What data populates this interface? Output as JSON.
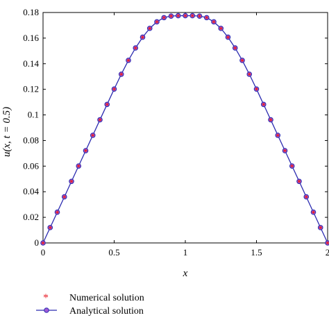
{
  "chart_data": {
    "type": "line",
    "title": "",
    "xlabel": "x",
    "ylabel": "u(x, t = 0.5)",
    "xlim": [
      0,
      2
    ],
    "ylim": [
      0,
      0.18
    ],
    "xticks": [
      0,
      0.5,
      1,
      1.5,
      2
    ],
    "xtick_labels": [
      "0",
      "0.5",
      "1",
      "1.5",
      "2"
    ],
    "yticks": [
      0,
      0.02,
      0.04,
      0.06,
      0.08,
      0.1,
      0.12,
      0.14,
      0.16,
      0.18
    ],
    "ytick_labels": [
      "0",
      "0.02",
      "0.04",
      "0.06",
      "0.08",
      "0.1",
      "0.12",
      "0.14",
      "0.16",
      "0.18"
    ],
    "grid": false,
    "legend_position": "bottom-left",
    "series": [
      {
        "name": "Numerical solution",
        "marker": "asterisk",
        "color": "#e8202a",
        "x": [
          0,
          0.05,
          0.1,
          0.15,
          0.2,
          0.25,
          0.3,
          0.35,
          0.4,
          0.45,
          0.5,
          0.55,
          0.6,
          0.65,
          0.7,
          0.75,
          0.8,
          0.85,
          0.9,
          0.95,
          1,
          1.05,
          1.1,
          1.15,
          1.2,
          1.25,
          1.3,
          1.35,
          1.4,
          1.45,
          1.5,
          1.55,
          1.6,
          1.65,
          1.7,
          1.75,
          1.8,
          1.85,
          1.9,
          1.95,
          2
        ],
        "y": [
          0,
          0.012,
          0.024,
          0.036,
          0.0481,
          0.0601,
          0.0721,
          0.0841,
          0.0962,
          0.1082,
          0.1202,
          0.1318,
          0.1426,
          0.1523,
          0.1607,
          0.1676,
          0.1727,
          0.176,
          0.1772,
          0.1775,
          0.1775,
          0.1775,
          0.1772,
          0.176,
          0.1727,
          0.1676,
          0.1607,
          0.1523,
          0.1426,
          0.1318,
          0.1202,
          0.1082,
          0.0962,
          0.0841,
          0.0721,
          0.0601,
          0.0481,
          0.036,
          0.024,
          0.012,
          0
        ]
      },
      {
        "name": "Analytical solution",
        "marker": "circle-line",
        "color": "#2b2bb0",
        "x": [
          0,
          0.05,
          0.1,
          0.15,
          0.2,
          0.25,
          0.3,
          0.35,
          0.4,
          0.45,
          0.5,
          0.55,
          0.6,
          0.65,
          0.7,
          0.75,
          0.8,
          0.85,
          0.9,
          0.95,
          1,
          1.05,
          1.1,
          1.15,
          1.2,
          1.25,
          1.3,
          1.35,
          1.4,
          1.45,
          1.5,
          1.55,
          1.6,
          1.65,
          1.7,
          1.75,
          1.8,
          1.85,
          1.9,
          1.95,
          2
        ],
        "y": [
          0,
          0.012,
          0.024,
          0.036,
          0.0481,
          0.0601,
          0.0721,
          0.0841,
          0.0962,
          0.1082,
          0.1202,
          0.1318,
          0.1426,
          0.1523,
          0.1607,
          0.1676,
          0.1727,
          0.176,
          0.1772,
          0.1775,
          0.1775,
          0.1775,
          0.1772,
          0.176,
          0.1727,
          0.1676,
          0.1607,
          0.1523,
          0.1426,
          0.1318,
          0.1202,
          0.1082,
          0.0962,
          0.0841,
          0.0721,
          0.0601,
          0.0481,
          0.036,
          0.024,
          0.012,
          0
        ]
      }
    ]
  }
}
